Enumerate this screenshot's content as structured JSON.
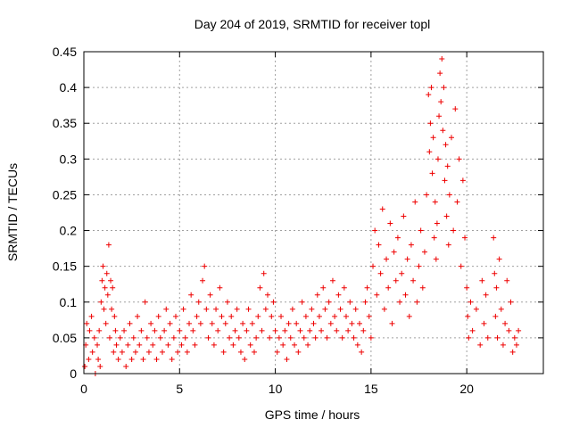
{
  "chart_data": {
    "type": "scatter",
    "title": "Day 204 of 2019, SRMTID for receiver topl",
    "xlabel": "GPS time / hours",
    "ylabel": "SRMTID / TECUs",
    "xlim": [
      0,
      24
    ],
    "ylim": [
      0,
      0.45
    ],
    "xticks": [
      0,
      5,
      10,
      15,
      20
    ],
    "xtick_labels": [
      "0",
      "5",
      "10",
      "15",
      "20"
    ],
    "yticks": [
      0,
      0.05,
      0.1,
      0.15,
      0.2,
      0.25,
      0.3,
      0.35,
      0.4,
      0.45
    ],
    "ytick_labels": [
      "0",
      "0.05",
      "0.1",
      "0.15",
      "0.2",
      "0.25",
      "0.3",
      "0.35",
      "0.4",
      "0.45"
    ],
    "grid": true,
    "marker": "+",
    "color": "#ee0000",
    "series": [
      {
        "name": "SRMTID",
        "points": [
          [
            0.05,
            0.01
          ],
          [
            0.1,
            0.04
          ],
          [
            0.15,
            0.07
          ],
          [
            0.25,
            0.02
          ],
          [
            0.3,
            0.06
          ],
          [
            0.4,
            0.08
          ],
          [
            0.45,
            0.03
          ],
          [
            0.55,
            0.05
          ],
          [
            0.6,
            0.0
          ],
          [
            0.7,
            0.04
          ],
          [
            0.75,
            0.02
          ],
          [
            0.8,
            0.06
          ],
          [
            0.85,
            0.01
          ],
          [
            0.9,
            0.1
          ],
          [
            0.95,
            0.13
          ],
          [
            1.0,
            0.15
          ],
          [
            1.05,
            0.09
          ],
          [
            1.1,
            0.12
          ],
          [
            1.15,
            0.07
          ],
          [
            1.2,
            0.14
          ],
          [
            1.25,
            0.11
          ],
          [
            1.3,
            0.18
          ],
          [
            1.35,
            0.05
          ],
          [
            1.4,
            0.13
          ],
          [
            1.45,
            0.09
          ],
          [
            1.5,
            0.12
          ],
          [
            1.55,
            0.03
          ],
          [
            1.6,
            0.08
          ],
          [
            1.65,
            0.06
          ],
          [
            1.7,
            0.04
          ],
          [
            1.8,
            0.02
          ],
          [
            1.9,
            0.05
          ],
          [
            2.0,
            0.03
          ],
          [
            2.1,
            0.06
          ],
          [
            2.2,
            0.01
          ],
          [
            2.3,
            0.04
          ],
          [
            2.4,
            0.07
          ],
          [
            2.5,
            0.02
          ],
          [
            2.6,
            0.05
          ],
          [
            2.7,
            0.03
          ],
          [
            2.8,
            0.08
          ],
          [
            2.9,
            0.04
          ],
          [
            3.0,
            0.06
          ],
          [
            3.1,
            0.02
          ],
          [
            3.2,
            0.1
          ],
          [
            3.3,
            0.05
          ],
          [
            3.4,
            0.03
          ],
          [
            3.5,
            0.07
          ],
          [
            3.6,
            0.04
          ],
          [
            3.7,
            0.06
          ],
          [
            3.8,
            0.02
          ],
          [
            3.9,
            0.08
          ],
          [
            4.0,
            0.05
          ],
          [
            4.1,
            0.03
          ],
          [
            4.2,
            0.06
          ],
          [
            4.3,
            0.09
          ],
          [
            4.4,
            0.04
          ],
          [
            4.5,
            0.07
          ],
          [
            4.6,
            0.02
          ],
          [
            4.7,
            0.05
          ],
          [
            4.8,
            0.08
          ],
          [
            4.9,
            0.03
          ],
          [
            5.0,
            0.06
          ],
          [
            5.1,
            0.04
          ],
          [
            5.2,
            0.09
          ],
          [
            5.3,
            0.05
          ],
          [
            5.4,
            0.03
          ],
          [
            5.5,
            0.07
          ],
          [
            5.6,
            0.11
          ],
          [
            5.7,
            0.06
          ],
          [
            5.8,
            0.04
          ],
          [
            5.9,
            0.08
          ],
          [
            6.0,
            0.1
          ],
          [
            6.1,
            0.07
          ],
          [
            6.2,
            0.13
          ],
          [
            6.3,
            0.15
          ],
          [
            6.4,
            0.09
          ],
          [
            6.5,
            0.05
          ],
          [
            6.6,
            0.11
          ],
          [
            6.7,
            0.07
          ],
          [
            6.8,
            0.04
          ],
          [
            6.9,
            0.09
          ],
          [
            7.0,
            0.06
          ],
          [
            7.1,
            0.12
          ],
          [
            7.2,
            0.08
          ],
          [
            7.3,
            0.03
          ],
          [
            7.4,
            0.07
          ],
          [
            7.5,
            0.1
          ],
          [
            7.6,
            0.05
          ],
          [
            7.7,
            0.08
          ],
          [
            7.8,
            0.04
          ],
          [
            7.9,
            0.06
          ],
          [
            8.0,
            0.09
          ],
          [
            8.1,
            0.05
          ],
          [
            8.2,
            0.03
          ],
          [
            8.3,
            0.07
          ],
          [
            8.4,
            0.02
          ],
          [
            8.5,
            0.06
          ],
          [
            8.6,
            0.09
          ],
          [
            8.7,
            0.04
          ],
          [
            8.8,
            0.07
          ],
          [
            8.9,
            0.03
          ],
          [
            9.0,
            0.05
          ],
          [
            9.1,
            0.08
          ],
          [
            9.2,
            0.12
          ],
          [
            9.3,
            0.06
          ],
          [
            9.4,
            0.14
          ],
          [
            9.5,
            0.09
          ],
          [
            9.6,
            0.11
          ],
          [
            9.7,
            0.05
          ],
          [
            9.8,
            0.08
          ],
          [
            9.9,
            0.1
          ],
          [
            10.0,
            0.06
          ],
          [
            10.1,
            0.03
          ],
          [
            10.2,
            0.05
          ],
          [
            10.3,
            0.08
          ],
          [
            10.4,
            0.04
          ],
          [
            10.5,
            0.06
          ],
          [
            10.6,
            0.02
          ],
          [
            10.7,
            0.07
          ],
          [
            10.8,
            0.05
          ],
          [
            10.9,
            0.09
          ],
          [
            11.0,
            0.04
          ],
          [
            11.1,
            0.07
          ],
          [
            11.2,
            0.03
          ],
          [
            11.3,
            0.06
          ],
          [
            11.4,
            0.1
          ],
          [
            11.5,
            0.05
          ],
          [
            11.6,
            0.08
          ],
          [
            11.7,
            0.04
          ],
          [
            11.8,
            0.06
          ],
          [
            11.9,
            0.09
          ],
          [
            12.0,
            0.07
          ],
          [
            12.1,
            0.05
          ],
          [
            12.2,
            0.11
          ],
          [
            12.3,
            0.08
          ],
          [
            12.4,
            0.06
          ],
          [
            12.5,
            0.12
          ],
          [
            12.6,
            0.09
          ],
          [
            12.7,
            0.05
          ],
          [
            12.8,
            0.1
          ],
          [
            12.9,
            0.07
          ],
          [
            13.0,
            0.13
          ],
          [
            13.1,
            0.08
          ],
          [
            13.2,
            0.06
          ],
          [
            13.3,
            0.11
          ],
          [
            13.4,
            0.09
          ],
          [
            13.5,
            0.05
          ],
          [
            13.6,
            0.12
          ],
          [
            13.7,
            0.08
          ],
          [
            13.8,
            0.06
          ],
          [
            13.9,
            0.1
          ],
          [
            14.0,
            0.07
          ],
          [
            14.1,
            0.05
          ],
          [
            14.2,
            0.09
          ],
          [
            14.3,
            0.04
          ],
          [
            14.4,
            0.07
          ],
          [
            14.5,
            0.03
          ],
          [
            14.6,
            0.06
          ],
          [
            14.7,
            0.1
          ],
          [
            14.8,
            0.12
          ],
          [
            14.9,
            0.08
          ],
          [
            15.0,
            0.05
          ],
          [
            15.1,
            0.15
          ],
          [
            15.2,
            0.2
          ],
          [
            15.3,
            0.11
          ],
          [
            15.4,
            0.18
          ],
          [
            15.5,
            0.14
          ],
          [
            15.6,
            0.23
          ],
          [
            15.7,
            0.09
          ],
          [
            15.8,
            0.16
          ],
          [
            15.9,
            0.12
          ],
          [
            16.0,
            0.21
          ],
          [
            16.1,
            0.07
          ],
          [
            16.2,
            0.17
          ],
          [
            16.3,
            0.13
          ],
          [
            16.4,
            0.19
          ],
          [
            16.5,
            0.1
          ],
          [
            16.6,
            0.14
          ],
          [
            16.7,
            0.22
          ],
          [
            16.8,
            0.11
          ],
          [
            16.9,
            0.16
          ],
          [
            17.0,
            0.08
          ],
          [
            17.1,
            0.18
          ],
          [
            17.2,
            0.13
          ],
          [
            17.3,
            0.24
          ],
          [
            17.4,
            0.1
          ],
          [
            17.5,
            0.15
          ],
          [
            17.6,
            0.2
          ],
          [
            17.7,
            0.12
          ],
          [
            17.8,
            0.17
          ],
          [
            17.9,
            0.25
          ],
          [
            18.0,
            0.39
          ],
          [
            18.05,
            0.31
          ],
          [
            18.1,
            0.35
          ],
          [
            18.15,
            0.4
          ],
          [
            18.2,
            0.28
          ],
          [
            18.25,
            0.33
          ],
          [
            18.3,
            0.19
          ],
          [
            18.35,
            0.24
          ],
          [
            18.4,
            0.16
          ],
          [
            18.45,
            0.21
          ],
          [
            18.5,
            0.3
          ],
          [
            18.55,
            0.36
          ],
          [
            18.6,
            0.42
          ],
          [
            18.65,
            0.38
          ],
          [
            18.7,
            0.44
          ],
          [
            18.75,
            0.34
          ],
          [
            18.8,
            0.4
          ],
          [
            18.85,
            0.27
          ],
          [
            18.9,
            0.32
          ],
          [
            18.95,
            0.22
          ],
          [
            19.0,
            0.29
          ],
          [
            19.05,
            0.18
          ],
          [
            19.1,
            0.25
          ],
          [
            19.2,
            0.33
          ],
          [
            19.3,
            0.2
          ],
          [
            19.4,
            0.37
          ],
          [
            19.5,
            0.24
          ],
          [
            19.6,
            0.3
          ],
          [
            19.7,
            0.15
          ],
          [
            19.8,
            0.27
          ],
          [
            19.9,
            0.19
          ],
          [
            20.0,
            0.12
          ],
          [
            20.05,
            0.08
          ],
          [
            20.1,
            0.05
          ],
          [
            20.2,
            0.1
          ],
          [
            20.3,
            0.06
          ],
          [
            20.5,
            0.09
          ],
          [
            20.7,
            0.04
          ],
          [
            20.8,
            0.13
          ],
          [
            20.9,
            0.07
          ],
          [
            21.0,
            0.11
          ],
          [
            21.1,
            0.05
          ],
          [
            21.4,
            0.19
          ],
          [
            21.45,
            0.14
          ],
          [
            21.5,
            0.08
          ],
          [
            21.55,
            0.12
          ],
          [
            21.6,
            0.05
          ],
          [
            21.7,
            0.16
          ],
          [
            21.8,
            0.09
          ],
          [
            21.9,
            0.04
          ],
          [
            22.0,
            0.07
          ],
          [
            22.1,
            0.13
          ],
          [
            22.2,
            0.06
          ],
          [
            22.3,
            0.1
          ],
          [
            22.4,
            0.03
          ],
          [
            22.5,
            0.05
          ],
          [
            22.6,
            0.04
          ],
          [
            22.7,
            0.06
          ]
        ]
      }
    ]
  }
}
